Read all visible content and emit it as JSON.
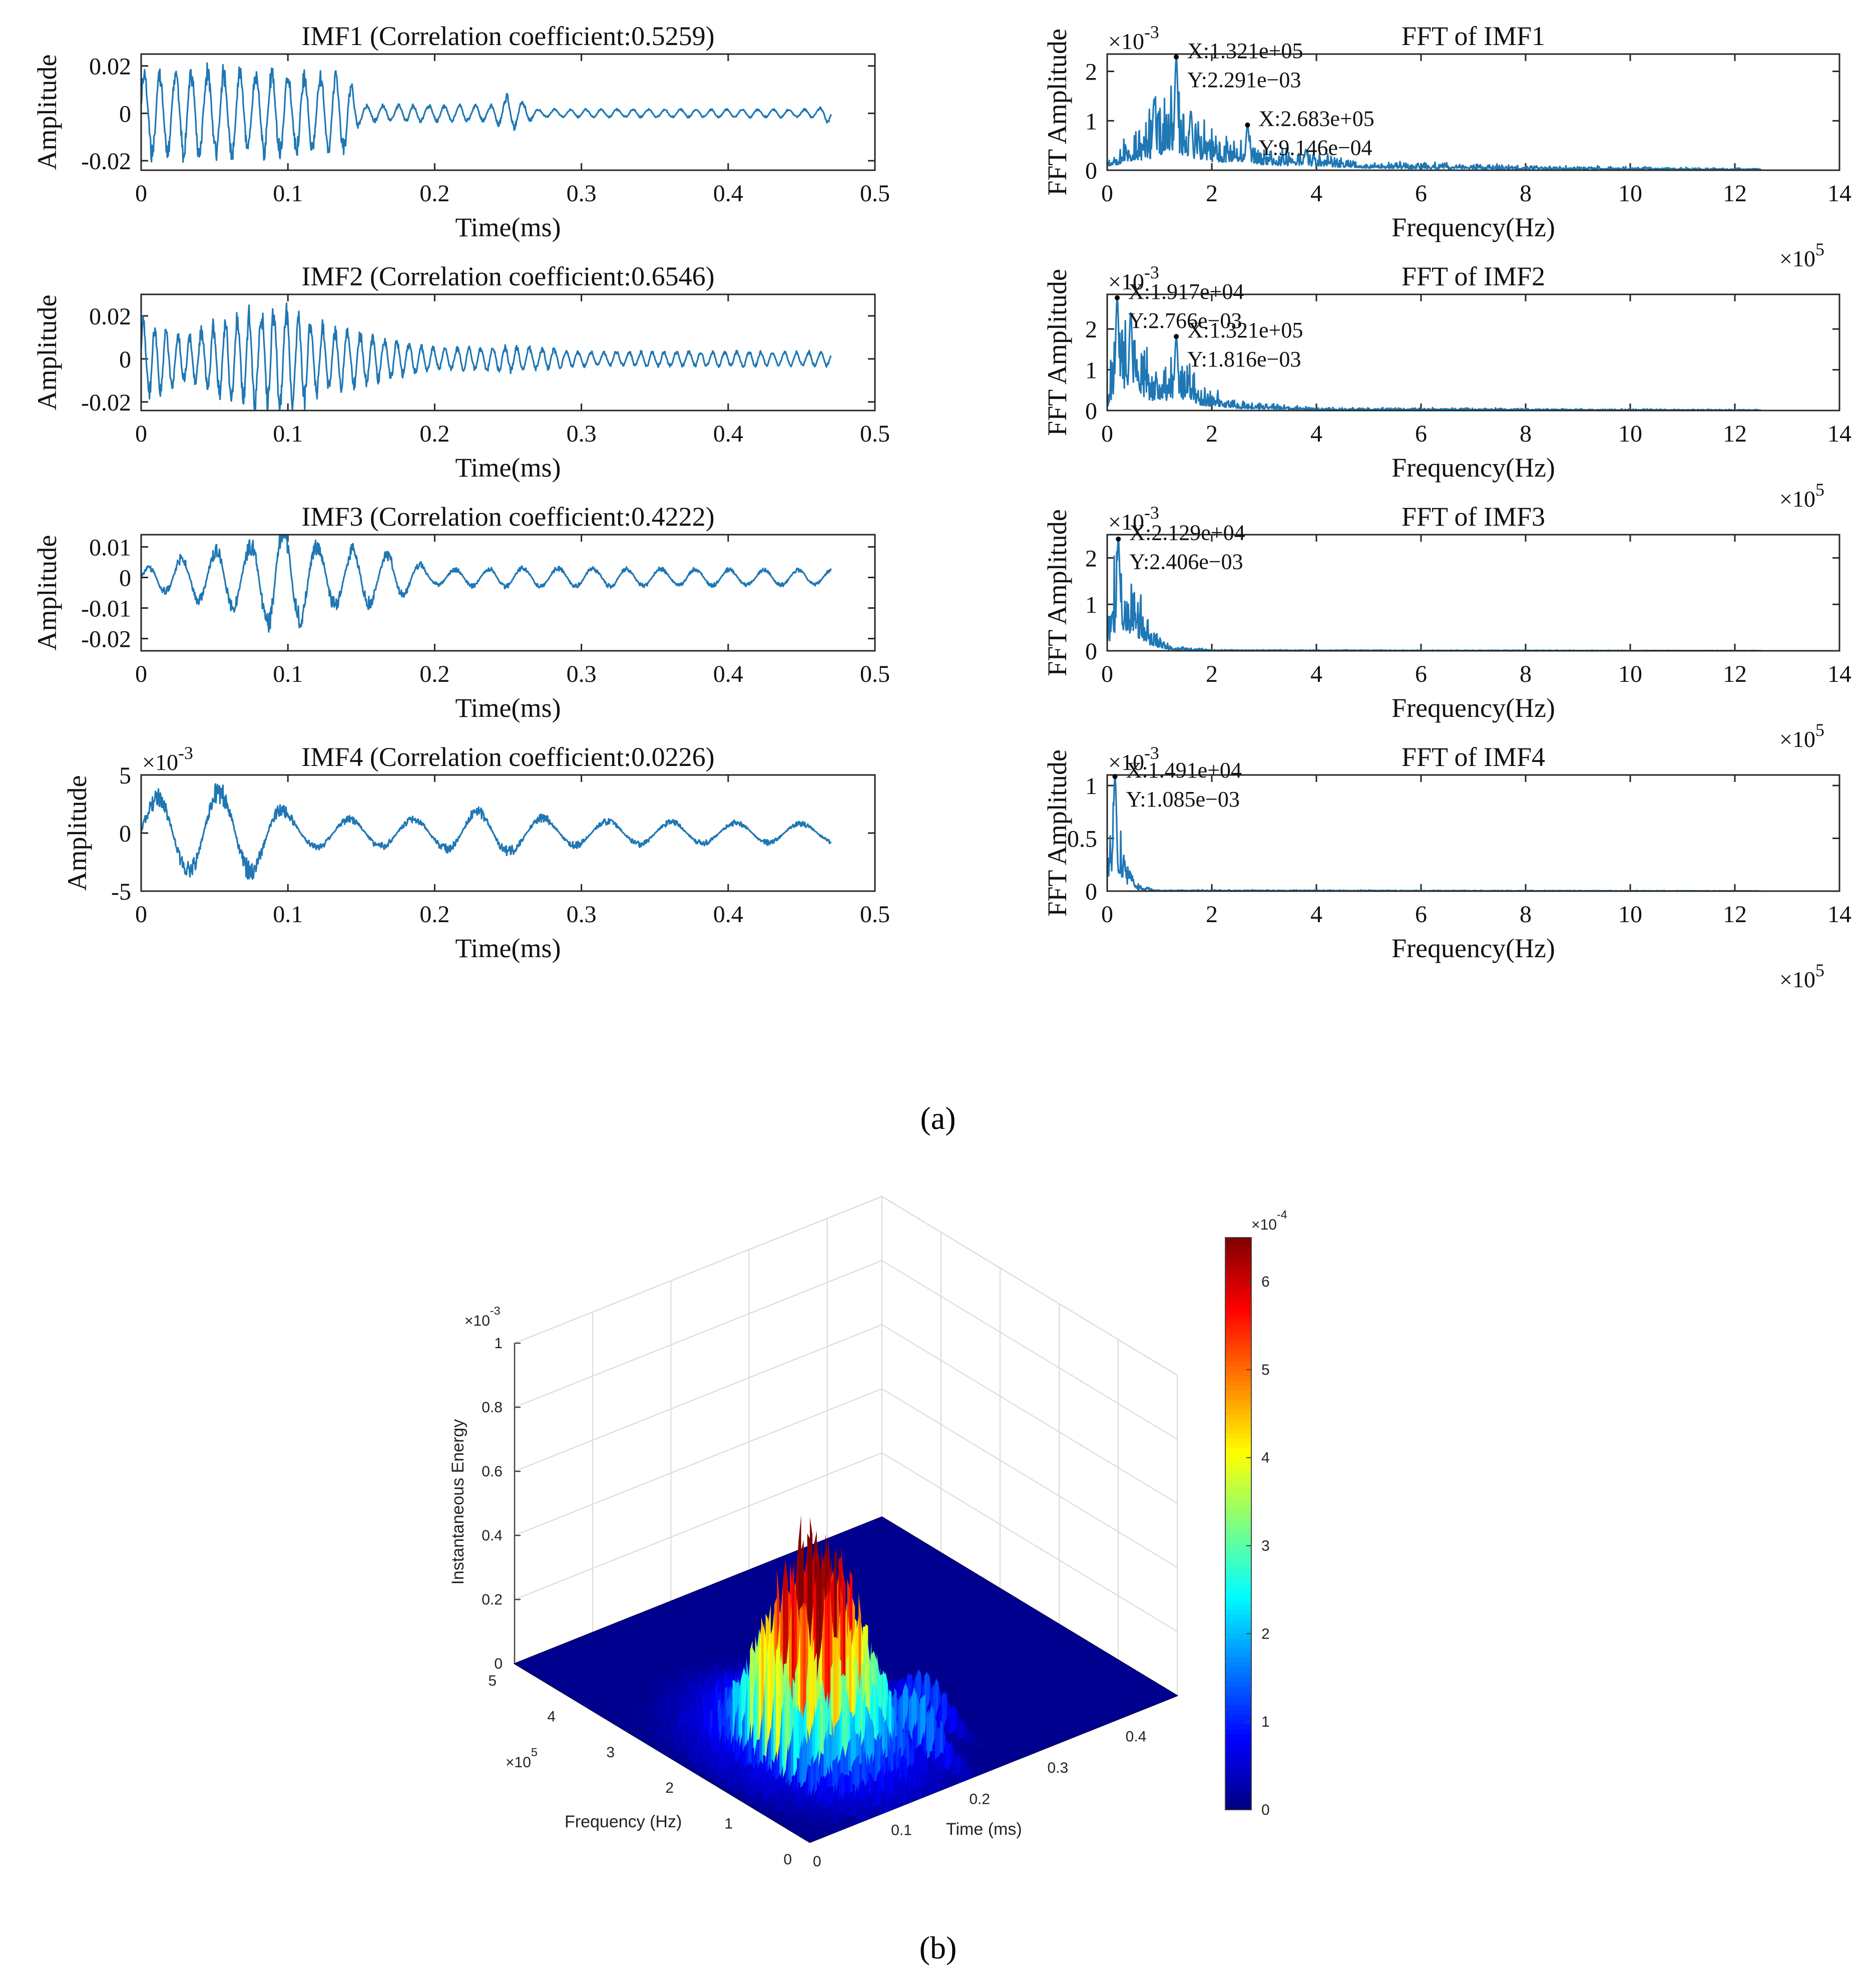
{
  "panel_labels": {
    "a": "(a)",
    "b": "(b)"
  },
  "colors": {
    "signal": "#1f77b4",
    "surface_base": "#00008f"
  },
  "chart_data": [
    {
      "id": "imf1",
      "type": "line",
      "title": "IMF1 (Correlation coefficient:0.5259)",
      "xlabel": "Time(ms)",
      "ylabel": "Amplitude",
      "xlim": [
        0,
        0.5
      ],
      "ylim": [
        -0.024,
        0.025
      ],
      "xticks": [
        0,
        0.1,
        0.2,
        0.3,
        0.4,
        0.5
      ],
      "xtick_labels": [
        "0",
        "0.1",
        "0.2",
        "0.3",
        "0.4",
        "0.5"
      ],
      "yticks": [
        -0.02,
        0,
        0.02
      ],
      "ytick_labels": [
        "-0.02",
        "0",
        "0.02"
      ],
      "series": [
        {
          "x_end": 0.47,
          "envelope": [
            [
              0,
              0.022
            ],
            [
              0.03,
              0.022
            ],
            [
              0.09,
              0.02
            ],
            [
              0.14,
              0.019
            ],
            [
              0.15,
              0.004
            ],
            [
              0.24,
              0.004
            ],
            [
              0.25,
              0.009
            ],
            [
              0.27,
              0.002
            ],
            [
              0.46,
              0.002
            ],
            [
              0.47,
              0.005
            ]
          ],
          "base_period": 0.011,
          "seed": 11
        }
      ]
    },
    {
      "id": "imf2",
      "type": "line",
      "title": "IMF2 (Correlation coefficient:0.6546)",
      "xlabel": "Time(ms)",
      "ylabel": "Amplitude",
      "xlim": [
        0,
        0.5
      ],
      "ylim": [
        -0.024,
        0.03
      ],
      "xticks": [
        0,
        0.1,
        0.2,
        0.3,
        0.4,
        0.5
      ],
      "xtick_labels": [
        "0",
        "0.1",
        "0.2",
        "0.3",
        "0.4",
        "0.5"
      ],
      "yticks": [
        -0.02,
        0,
        0.02
      ],
      "ytick_labels": [
        "-0.02",
        "0",
        "0.02"
      ],
      "series": [
        {
          "x_end": 0.47,
          "envelope": [
            [
              0,
              0.022
            ],
            [
              0.03,
              0.012
            ],
            [
              0.065,
              0.024
            ],
            [
              0.1,
              0.029
            ],
            [
              0.12,
              0.02
            ],
            [
              0.16,
              0.012
            ],
            [
              0.2,
              0.006
            ],
            [
              0.25,
              0.007
            ],
            [
              0.3,
              0.004
            ],
            [
              0.47,
              0.004
            ]
          ],
          "base_period": 0.0085,
          "seed": 23
        }
      ]
    },
    {
      "id": "imf3",
      "type": "line",
      "title": "IMF3 (Correlation coefficient:0.4222)",
      "xlabel": "Time(ms)",
      "ylabel": "Amplitude",
      "xlim": [
        0,
        0.5
      ],
      "ylim": [
        -0.024,
        0.014
      ],
      "xticks": [
        0,
        0.1,
        0.2,
        0.3,
        0.4,
        0.5
      ],
      "xtick_labels": [
        "0",
        "0.1",
        "0.2",
        "0.3",
        "0.4",
        "0.5"
      ],
      "yticks": [
        -0.02,
        -0.01,
        0,
        0.01
      ],
      "ytick_labels": [
        "-0.02",
        "-0.01",
        "0",
        "0.01"
      ],
      "series": [
        {
          "x_end": 0.47,
          "envelope": [
            [
              0,
              0.003
            ],
            [
              0.04,
              0.01
            ],
            [
              0.075,
              0.013
            ],
            [
              0.09,
              0.023
            ],
            [
              0.125,
              0.012
            ],
            [
              0.17,
              0.01
            ],
            [
              0.2,
              0.003
            ],
            [
              0.25,
              0.004
            ],
            [
              0.47,
              0.003
            ]
          ],
          "base_period": 0.024,
          "seed": 37
        }
      ]
    },
    {
      "id": "imf4",
      "type": "line",
      "title": "IMF4 (Correlation coefficient:0.0226)",
      "xlabel": "Time(ms)",
      "ylabel": "Amplitude",
      "xlim": [
        0,
        0.5
      ],
      "ylim": [
        -5,
        5
      ],
      "y_multiplier": "×10^-3",
      "xticks": [
        0,
        0.1,
        0.2,
        0.3,
        0.4,
        0.5
      ],
      "xtick_labels": [
        "0",
        "0.1",
        "0.2",
        "0.3",
        "0.4",
        "0.5"
      ],
      "yticks": [
        -5,
        0,
        5
      ],
      "ytick_labels": [
        "-5",
        "0",
        "5"
      ],
      "series": [
        {
          "x_end": 0.47,
          "envelope": [
            [
              0,
              3.6
            ],
            [
              0.05,
              4.5
            ],
            [
              0.075,
              4.3
            ],
            [
              0.11,
              1.5
            ],
            [
              0.2,
              1.5
            ],
            [
              0.23,
              2.4
            ],
            [
              0.26,
              1.9
            ],
            [
              0.3,
              1.3
            ],
            [
              0.47,
              1.0
            ]
          ],
          "base_period": 0.045,
          "seed": 41
        }
      ]
    },
    {
      "id": "fft1",
      "type": "line",
      "title": "FFT of IMF1",
      "xlabel": "Frequency(Hz)",
      "ylabel": "FFT Amplitude",
      "xlim": [
        0,
        14
      ],
      "ylim": [
        0,
        2.35
      ],
      "x_multiplier": "×10^5",
      "y_multiplier": "×10^-3",
      "xticks": [
        0,
        2,
        4,
        6,
        8,
        10,
        12,
        14
      ],
      "xtick_labels": [
        "0",
        "2",
        "4",
        "6",
        "8",
        "10",
        "12",
        "14"
      ],
      "yticks": [
        0,
        1,
        2
      ],
      "ytick_labels": [
        "0",
        "1",
        "2"
      ],
      "series": [
        {
          "x_end": 12.5,
          "envelope": [
            [
              0,
              0.3
            ],
            [
              0.8,
              0.9
            ],
            [
              1.2,
              1.5
            ],
            [
              1.6,
              1.0
            ],
            [
              2.1,
              0.6
            ],
            [
              2.6,
              0.7
            ],
            [
              3.0,
              0.4
            ],
            [
              3.8,
              0.35
            ],
            [
              5,
              0.15
            ],
            [
              8,
              0.08
            ],
            [
              12.5,
              0.03
            ]
          ],
          "peaks": [
            [
              1.321,
              2.291
            ],
            [
              2.683,
              0.9146
            ],
            [
              0.9,
              1.45
            ],
            [
              1.6,
              1.2
            ],
            [
              3.8,
              0.42
            ]
          ],
          "seed": 53
        }
      ],
      "annotations": [
        {
          "x": 1.321,
          "y": 2.291,
          "lines": [
            "X:1.321e+05",
            "Y:2.291e−03"
          ]
        },
        {
          "x": 2.683,
          "y": 0.9146,
          "lines": [
            "X:2.683e+05",
            "Y:9.146e−04"
          ]
        }
      ]
    },
    {
      "id": "fft2",
      "type": "line",
      "title": "FFT of IMF2",
      "xlabel": "Frequency(Hz)",
      "ylabel": "FFT Amplitude",
      "xlim": [
        0,
        14
      ],
      "ylim": [
        0,
        2.85
      ],
      "x_multiplier": "×10^5",
      "y_multiplier": "×10^-3",
      "xticks": [
        0,
        2,
        4,
        6,
        8,
        10,
        12,
        14
      ],
      "xtick_labels": [
        "0",
        "2",
        "4",
        "6",
        "8",
        "10",
        "12",
        "14"
      ],
      "yticks": [
        0,
        1,
        2
      ],
      "ytick_labels": [
        "0",
        "1",
        "2"
      ],
      "series": [
        {
          "x_end": 12.5,
          "envelope": [
            [
              0,
              0.3
            ],
            [
              0.2,
              2.2
            ],
            [
              0.6,
              1.6
            ],
            [
              0.9,
              0.8
            ],
            [
              1.4,
              1.2
            ],
            [
              1.8,
              0.5
            ],
            [
              2.5,
              0.2
            ],
            [
              4,
              0.06
            ],
            [
              12.5,
              0.02
            ]
          ],
          "peaks": [
            [
              0.1917,
              2.766
            ],
            [
              1.321,
              1.816
            ],
            [
              0.45,
              2.4
            ]
          ],
          "seed": 61
        }
      ],
      "annotations": [
        {
          "x": 0.1917,
          "y": 2.766,
          "lines": [
            "X:1.917e+04",
            "Y:2.766e−03"
          ]
        },
        {
          "x": 1.321,
          "y": 1.816,
          "lines": [
            "X:1.321e+05",
            "Y:1.816e−03"
          ]
        }
      ]
    },
    {
      "id": "fft3",
      "type": "line",
      "title": "FFT of IMF3",
      "xlabel": "Frequency(Hz)",
      "ylabel": "FFT Amplitude",
      "xlim": [
        0,
        14
      ],
      "ylim": [
        0,
        2.5
      ],
      "x_multiplier": "×10^5",
      "y_multiplier": "×10^-3",
      "xticks": [
        0,
        2,
        4,
        6,
        8,
        10,
        12,
        14
      ],
      "xtick_labels": [
        "0",
        "2",
        "4",
        "6",
        "8",
        "10",
        "12",
        "14"
      ],
      "yticks": [
        0,
        1,
        2
      ],
      "ytick_labels": [
        "0",
        "1",
        "2"
      ],
      "series": [
        {
          "x_end": 12.5,
          "envelope": [
            [
              0,
              0.5
            ],
            [
              0.2,
              2.0
            ],
            [
              0.5,
              1.4
            ],
            [
              0.8,
              0.5
            ],
            [
              1.2,
              0.1
            ],
            [
              2,
              0.02
            ],
            [
              12.5,
              0.005
            ]
          ],
          "peaks": [
            [
              0.2129,
              2.406
            ]
          ],
          "seed": 71
        }
      ],
      "annotations": [
        {
          "x": 0.2129,
          "y": 2.406,
          "lines": [
            "X:2.129e+04",
            "Y:2.406e−03"
          ]
        }
      ]
    },
    {
      "id": "fft4",
      "type": "line",
      "title": "FFT of IMF4",
      "xlabel": "Frequency(Hz)",
      "ylabel": "FFT Amplitude",
      "xlim": [
        0,
        14
      ],
      "ylim": [
        0,
        1.1
      ],
      "x_multiplier": "×10^5",
      "y_multiplier": "×10^-3",
      "xticks": [
        0,
        2,
        4,
        6,
        8,
        10,
        12,
        14
      ],
      "xtick_labels": [
        "0",
        "2",
        "4",
        "6",
        "8",
        "10",
        "12",
        "14"
      ],
      "yticks": [
        0,
        0.5,
        1
      ],
      "ytick_labels": [
        "0",
        "0.5",
        "1"
      ],
      "series": [
        {
          "x_end": 12.5,
          "envelope": [
            [
              0,
              0.3
            ],
            [
              0.15,
              0.9
            ],
            [
              0.35,
              0.3
            ],
            [
              0.6,
              0.05
            ],
            [
              1,
              0.01
            ],
            [
              12.5,
              0.003
            ]
          ],
          "peaks": [
            [
              0.1491,
              1.085
            ]
          ],
          "seed": 83
        }
      ],
      "annotations": [
        {
          "x": 0.1491,
          "y": 1.085,
          "lines": [
            "X:1.491e+04",
            "Y:1.085e−03"
          ]
        }
      ]
    },
    {
      "id": "energy3d",
      "type": "surface",
      "xlabel": "Time (ms)",
      "ylabel": "Frequency (Hz)",
      "zlabel": "Instantaneous Energy",
      "xlim": [
        0,
        0.47
      ],
      "ylim": [
        0,
        500000
      ],
      "zlim": [
        0,
        0.001
      ],
      "xticks": [
        0,
        0.1,
        0.2,
        0.3,
        0.4
      ],
      "xtick_labels": [
        "0",
        "0.1",
        "0.2",
        "0.3",
        "0.4"
      ],
      "yticks": [
        0,
        1,
        2,
        3,
        4,
        5
      ],
      "ytick_labels": [
        "0",
        "1",
        "2",
        "3",
        "4",
        "5"
      ],
      "zticks": [
        0,
        0.2,
        0.4,
        0.6,
        0.8,
        1
      ],
      "ztick_labels": [
        "0",
        "0.2",
        "0.4",
        "0.6",
        "0.8",
        "1"
      ],
      "y_multiplier": "×10^5",
      "z_multiplier": "×10^-3",
      "peaks": [
        {
          "t": 0.1,
          "f": 1.3,
          "e": 0.00061
        },
        {
          "t": 0.12,
          "f": 1.3,
          "e": 0.00055
        },
        {
          "t": 0.08,
          "f": 1.4,
          "e": 0.0005
        },
        {
          "t": 0.14,
          "f": 1.3,
          "e": 0.00045
        },
        {
          "t": 0.06,
          "f": 1.5,
          "e": 0.00034
        },
        {
          "t": 0.16,
          "f": 1.2,
          "e": 0.00026
        },
        {
          "t": 0.25,
          "f": 1.3,
          "e": 0.00012
        },
        {
          "t": 0.2,
          "f": 0.8,
          "e": 0.00014
        }
      ],
      "colorbar": {
        "colormap": "jet",
        "range": [
          0,
          0.00065
        ],
        "multiplier": "×10^-4",
        "ticks": [
          0,
          1,
          2,
          3,
          4,
          5,
          6
        ],
        "tick_labels": [
          "0",
          "1",
          "2",
          "3",
          "4",
          "5",
          "6"
        ]
      }
    }
  ]
}
